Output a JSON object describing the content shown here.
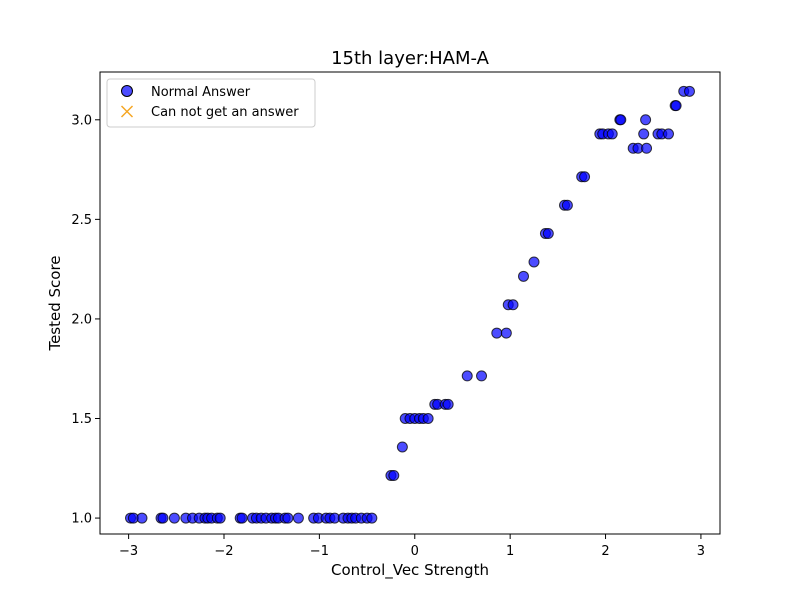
{
  "chart_data": {
    "type": "scatter",
    "title": "15th layer:HAM-A",
    "xlabel": "Control_Vec Strength",
    "ylabel": "Tested Score",
    "xlim": [
      -3.3,
      3.2
    ],
    "ylim": [
      0.92,
      3.24
    ],
    "xticks": [
      -3,
      -2,
      -1,
      0,
      1,
      2,
      3
    ],
    "xtick_labels": [
      "−3",
      "−2",
      "−1",
      "0",
      "1",
      "2",
      "3"
    ],
    "yticks": [
      1.0,
      1.5,
      2.0,
      2.5,
      3.0
    ],
    "ytick_labels": [
      "1.0",
      "1.5",
      "2.0",
      "2.5",
      "3.0"
    ],
    "grid": false,
    "legend_position": "top-left",
    "colors": {
      "normal_fill": "#0000ff",
      "normal_edge": "#000000",
      "normal_alpha": 0.7,
      "cannot_marker": "#f5a623"
    },
    "series": [
      {
        "name": "Normal Answer",
        "marker": "circle",
        "points": [
          [
            -2.98,
            1.0
          ],
          [
            -2.95,
            1.0
          ],
          [
            -2.86,
            1.0
          ],
          [
            -2.66,
            1.0
          ],
          [
            -2.64,
            1.0
          ],
          [
            -2.52,
            1.0
          ],
          [
            -2.4,
            1.0
          ],
          [
            -2.33,
            1.0
          ],
          [
            -2.26,
            1.0
          ],
          [
            -2.2,
            1.0
          ],
          [
            -2.17,
            1.0
          ],
          [
            -2.13,
            1.0
          ],
          [
            -2.07,
            1.0
          ],
          [
            -2.04,
            1.0
          ],
          [
            -1.83,
            1.0
          ],
          [
            -1.81,
            1.0
          ],
          [
            -1.7,
            1.0
          ],
          [
            -1.66,
            1.0
          ],
          [
            -1.61,
            1.0
          ],
          [
            -1.56,
            1.0
          ],
          [
            -1.5,
            1.0
          ],
          [
            -1.46,
            1.0
          ],
          [
            -1.43,
            1.0
          ],
          [
            -1.36,
            1.0
          ],
          [
            -1.33,
            1.0
          ],
          [
            -1.22,
            1.0
          ],
          [
            -1.06,
            1.0
          ],
          [
            -1.01,
            1.0
          ],
          [
            -0.93,
            1.0
          ],
          [
            -0.89,
            1.0
          ],
          [
            -0.84,
            1.0
          ],
          [
            -0.75,
            1.0
          ],
          [
            -0.7,
            1.0
          ],
          [
            -0.66,
            1.0
          ],
          [
            -0.62,
            1.0
          ],
          [
            -0.56,
            1.0
          ],
          [
            -0.5,
            1.0
          ],
          [
            -0.45,
            1.0
          ],
          [
            -0.25,
            1.214
          ],
          [
            -0.22,
            1.214
          ],
          [
            -0.13,
            1.357
          ],
          [
            -0.1,
            1.5
          ],
          [
            -0.05,
            1.5
          ],
          [
            0.0,
            1.5
          ],
          [
            0.05,
            1.5
          ],
          [
            0.09,
            1.5
          ],
          [
            0.14,
            1.5
          ],
          [
            0.21,
            1.571
          ],
          [
            0.24,
            1.571
          ],
          [
            0.32,
            1.571
          ],
          [
            0.35,
            1.571
          ],
          [
            0.55,
            1.714
          ],
          [
            0.7,
            1.714
          ],
          [
            0.86,
            1.929
          ],
          [
            0.96,
            1.929
          ],
          [
            0.98,
            2.071
          ],
          [
            1.03,
            2.071
          ],
          [
            1.14,
            2.214
          ],
          [
            1.25,
            2.286
          ],
          [
            1.37,
            2.429
          ],
          [
            1.4,
            2.429
          ],
          [
            1.57,
            2.571
          ],
          [
            1.6,
            2.571
          ],
          [
            1.75,
            2.714
          ],
          [
            1.78,
            2.714
          ],
          [
            1.94,
            2.929
          ],
          [
            1.97,
            2.929
          ],
          [
            2.03,
            2.929
          ],
          [
            2.07,
            2.929
          ],
          [
            2.15,
            3.0
          ],
          [
            2.16,
            3.0
          ],
          [
            2.29,
            2.857
          ],
          [
            2.34,
            2.857
          ],
          [
            2.4,
            2.929
          ],
          [
            2.42,
            3.0
          ],
          [
            2.43,
            2.857
          ],
          [
            2.55,
            2.929
          ],
          [
            2.59,
            2.929
          ],
          [
            2.66,
            2.929
          ],
          [
            2.73,
            3.071
          ],
          [
            2.74,
            3.071
          ],
          [
            2.82,
            3.143
          ],
          [
            2.88,
            3.143
          ]
        ]
      },
      {
        "name": "Can not get an answer",
        "marker": "x",
        "points": []
      }
    ]
  }
}
